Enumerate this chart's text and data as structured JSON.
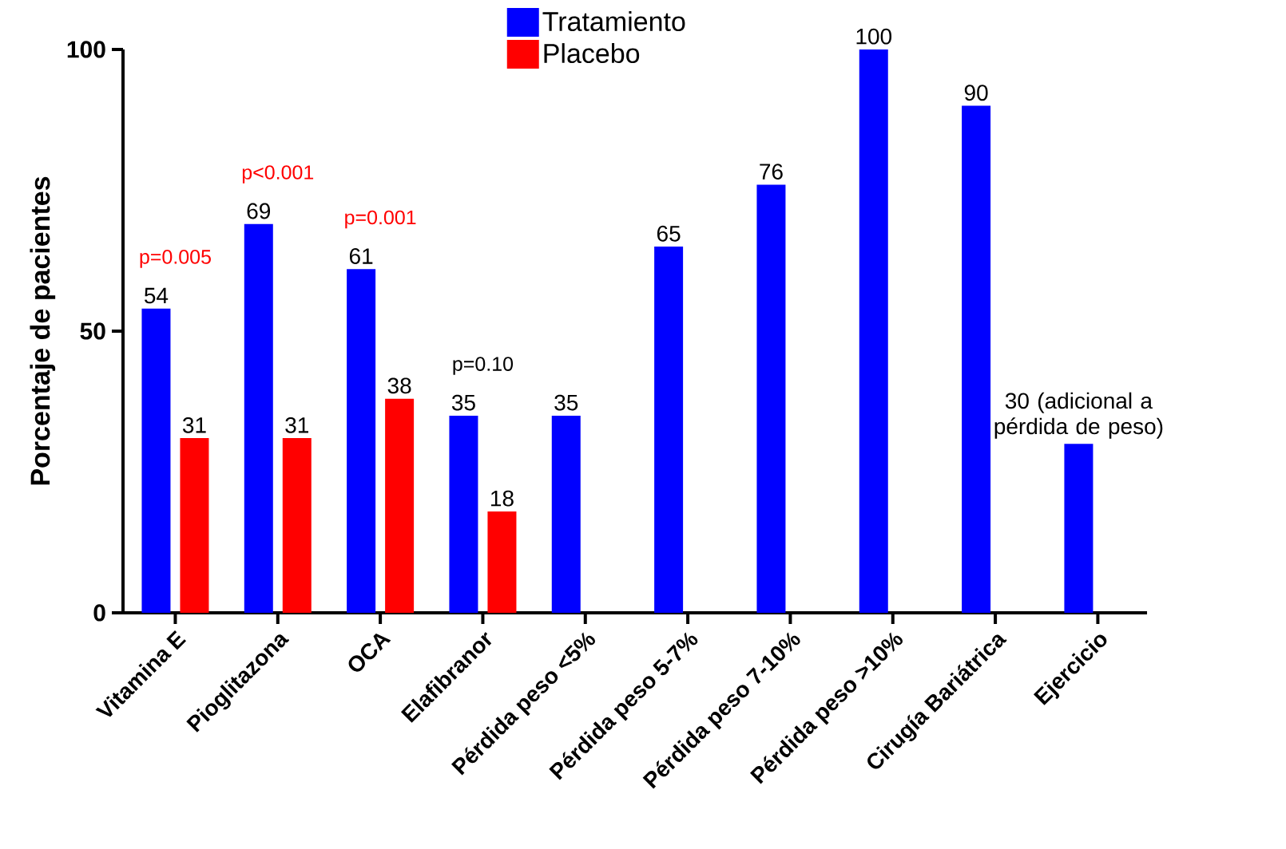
{
  "chart_data": {
    "type": "bar",
    "ylabel": "Porcentaje de pacientes",
    "categories": [
      "Vitamina E",
      "Pioglitazona",
      "OCA",
      "Elafibranor",
      "Pérdida peso <5%",
      "Pérdida peso 5-7%",
      "Pérdida peso 7-10%",
      "Pérdida peso >10%",
      "Cirugía Bariátrica",
      "Ejercicio"
    ],
    "series": [
      {
        "name": "Tratamiento",
        "color": "#0000ff",
        "values": [
          54,
          69,
          61,
          35,
          35,
          65,
          76,
          100,
          90,
          30
        ],
        "value_labels": [
          "54",
          "69",
          "61",
          "35",
          "35",
          "65",
          "76",
          "100",
          "90",
          "30 (adicional a pérdida de peso)"
        ]
      },
      {
        "name": "Placebo",
        "color": "#ff0000",
        "values": [
          31,
          31,
          38,
          18,
          null,
          null,
          null,
          null,
          null,
          null
        ],
        "value_labels": [
          "31",
          "31",
          "38",
          "18",
          null,
          null,
          null,
          null,
          null,
          null
        ]
      }
    ],
    "annotations": [
      "p=0.005",
      "p<0.001",
      "p=0.001",
      "p=0.10"
    ],
    "ylim": [
      0,
      100
    ],
    "yticks": [
      0,
      50,
      100
    ],
    "grid": false,
    "legend": "top"
  }
}
